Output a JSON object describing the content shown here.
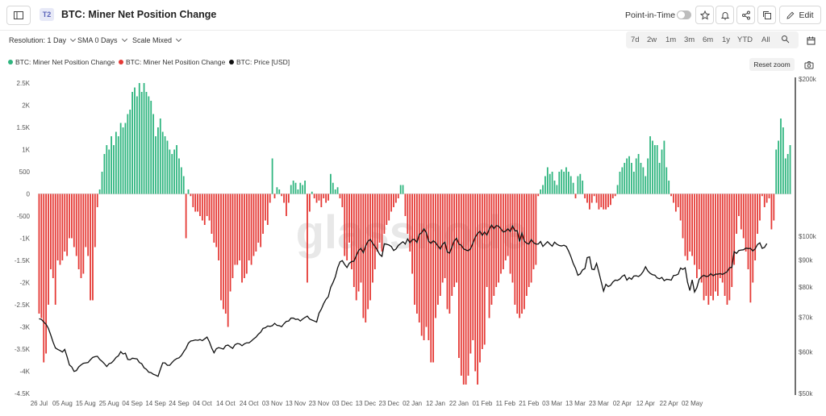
{
  "header": {
    "tier": "T2",
    "title": "BTC: Miner Net Position Change",
    "point_in_time": "Point-in-Time",
    "edit_label": "Edit"
  },
  "controls": {
    "resolution": "Resolution: 1 Day",
    "sma": "SMA 0 Days",
    "scale": "Scale Mixed",
    "ranges": [
      "7d",
      "2w",
      "1m",
      "3m",
      "6m",
      "1y",
      "YTD",
      "All"
    ]
  },
  "legend": {
    "items": [
      {
        "label": "BTC: Miner Net Position Change",
        "color": "#2fb57f"
      },
      {
        "label": "BTC: Miner Net Position Change",
        "color": "#e53935"
      },
      {
        "label": "BTC: Price [USD]",
        "color": "#111111"
      }
    ],
    "reset_zoom": "Reset zoom"
  },
  "watermark": "glassnode",
  "chart_data": {
    "type": "bar",
    "x_labels": [
      "26 Jul",
      "05 Aug",
      "15 Aug",
      "25 Aug",
      "04 Sep",
      "14 Sep",
      "24 Sep",
      "04 Oct",
      "14 Oct",
      "24 Oct",
      "03 Nov",
      "13 Nov",
      "23 Nov",
      "03 Dec",
      "13 Dec",
      "23 Dec",
      "02 Jan",
      "12 Jan",
      "22 Jan",
      "01 Feb",
      "11 Feb",
      "21 Feb",
      "03 Mar",
      "13 Mar",
      "23 Mar",
      "02 Apr",
      "12 Apr",
      "22 Apr",
      "02 May"
    ],
    "left_axis_ticks": [
      "2.5K",
      "2K",
      "1.5K",
      "1K",
      "500",
      "0",
      "-500",
      "-1K",
      "-1.5K",
      "-2K",
      "-2.5K",
      "-3K",
      "-3.5K",
      "-4K",
      "-4.5K"
    ],
    "right_axis_ticks": [
      "$200k",
      "$100k",
      "$90k",
      "$80k",
      "$70k",
      "$60k",
      "$50k"
    ],
    "y_left_range": [
      -4500,
      2500
    ],
    "y_right_range": [
      50000,
      200000
    ],
    "right_scale": "log",
    "colors": {
      "positive": "#2fb57f",
      "negative": "#e53935",
      "price": "#111111"
    },
    "series": [
      {
        "name": "BTC: Miner Net Position Change",
        "values": [
          -2700,
          -2800,
          -3800,
          -3600,
          -2500,
          -1700,
          -1900,
          -2500,
          -1500,
          -1600,
          -1500,
          -1300,
          -1400,
          -1000,
          -1000,
          -1200,
          -1400,
          -1700,
          -1900,
          -1800,
          -1200,
          -1400,
          -2400,
          -2400,
          -1200,
          -300,
          100,
          500,
          900,
          1100,
          1000,
          1300,
          1100,
          1400,
          1300,
          1600,
          1500,
          1600,
          1800,
          1900,
          2300,
          2400,
          2200,
          2500,
          2300,
          2500,
          2300,
          2200,
          2100,
          1800,
          1300,
          1500,
          1700,
          1400,
          1300,
          1200,
          1000,
          900,
          1000,
          1100,
          800,
          600,
          400,
          -1000,
          100,
          -50,
          -300,
          -400,
          -400,
          -500,
          -600,
          -700,
          -500,
          -600,
          -900,
          -1100,
          -1200,
          -1500,
          -2400,
          -2600,
          -2700,
          -3000,
          -2200,
          -1900,
          -1600,
          -1600,
          -1500,
          -2000,
          -1900,
          -1800,
          -1500,
          -1600,
          -1400,
          -1300,
          -1100,
          -1200,
          -900,
          -600,
          -700,
          -200,
          800,
          -100,
          150,
          100,
          -50,
          -200,
          -500,
          -200,
          200,
          300,
          250,
          100,
          250,
          200,
          300,
          -2000,
          -400,
          50,
          -100,
          -200,
          -150,
          -300,
          -100,
          -200,
          -150,
          450,
          250,
          100,
          150,
          -100,
          -300,
          -1400,
          -1500,
          -1100,
          -1700,
          -2100,
          -2400,
          -2200,
          -2000,
          -2800,
          -2900,
          -2600,
          -2400,
          -2000,
          -1700,
          -1300,
          -1100,
          -1300,
          -900,
          -700,
          -600,
          -400,
          -300,
          -200,
          -100,
          200,
          200,
          -500,
          -900,
          -1300,
          -1800,
          -2500,
          -2700,
          -2900,
          -3200,
          -3300,
          -3000,
          -3300,
          -3800,
          -3800,
          -2800,
          -2500,
          -2300,
          -2000,
          -1900,
          -2600,
          -2700,
          -2300,
          -2100,
          -2000,
          -3700,
          -4100,
          -4300,
          -4300,
          -4100,
          -3600,
          -3300,
          -4000,
          -4300,
          -3800,
          -3500,
          -3400,
          -2100,
          -2800,
          -2500,
          -2300,
          -2100,
          -2000,
          -1800,
          -1700,
          -1500,
          -1400,
          -1800,
          -2000,
          -2500,
          -2700,
          -2800,
          -2700,
          -2600,
          -2300,
          -2100,
          -2000,
          -1700,
          -1600,
          -50,
          100,
          200,
          400,
          600,
          450,
          500,
          300,
          200,
          500,
          550,
          500,
          600,
          500,
          400,
          250,
          -100,
          400,
          450,
          300,
          -100,
          -200,
          -350,
          -200,
          -50,
          -200,
          -350,
          -300,
          -350,
          -350,
          -300,
          -250,
          -100,
          -50,
          200,
          500,
          600,
          700,
          800,
          850,
          700,
          500,
          800,
          900,
          700,
          600,
          400,
          800,
          1300,
          1200,
          1100,
          1100,
          700,
          1000,
          1200,
          600,
          300,
          -50,
          -200,
          -400,
          -300,
          -600,
          -1000,
          -1400,
          -1500,
          -1300,
          -1400,
          -1600,
          -1900,
          -1700,
          -2000,
          -2400,
          -2300,
          -2500,
          -2300,
          -2400,
          -2200,
          -2300,
          -1900,
          -2000,
          -2300,
          -2500,
          -2400,
          -2100,
          -1600,
          -900,
          -500,
          -800,
          -1000,
          -1300,
          -1700,
          -2450,
          -2000,
          -1500,
          -900,
          -600,
          -50,
          -300,
          -200,
          -100,
          -800,
          -600,
          1000,
          1200,
          1700,
          1500,
          800,
          900,
          1100
        ],
        "price": [
          69500,
          69300,
          68500,
          67800,
          66600,
          64700,
          62700,
          61100,
          60700,
          60400,
          60000,
          60700,
          58800,
          56700,
          56200,
          55100,
          55300,
          56200,
          56700,
          57100,
          57200,
          57300,
          58000,
          58600,
          58800,
          58900,
          58100,
          57600,
          57000,
          56300,
          57000,
          57200,
          57800,
          58600,
          59000,
          60100,
          59500,
          59700,
          58100,
          58000,
          58400,
          58300,
          58200,
          57300,
          57000,
          56000,
          55600,
          54900,
          54800,
          54400,
          54200,
          53900,
          55600,
          57200,
          57200,
          56600,
          56600,
          57300,
          57900,
          58300,
          58500,
          59100,
          60100,
          61000,
          62400,
          63000,
          63100,
          63300,
          63200,
          63400,
          63100,
          63600,
          64100,
          62800,
          61100,
          59800,
          60900,
          61200,
          61000,
          60800,
          61700,
          61900,
          61400,
          61000,
          62000,
          62300,
          62200,
          61700,
          62200,
          62500,
          62500,
          63000,
          63600,
          64100,
          64900,
          65500,
          66600,
          66800,
          67300,
          67200,
          67400,
          68100,
          67500,
          67400,
          67100,
          68000,
          68700,
          68800,
          69700,
          69700,
          69300,
          69400,
          68800,
          69400,
          69900,
          70300,
          69400,
          69100,
          68800,
          68500,
          71200,
          72500,
          74300,
          75700,
          76600,
          79800,
          81500,
          83600,
          87000,
          89300,
          89800,
          88300,
          87100,
          88800,
          89400,
          89600,
          91800,
          93900,
          94800,
          93000,
          95800,
          97800,
          98600,
          97000,
          95600,
          94100,
          92300,
          91500,
          96700,
          96500,
          96200,
          95600,
          93900,
          94500,
          96000,
          96800,
          97600,
          96600,
          98800,
          97200,
          98500,
          98600,
          97300,
          100800,
          101500,
          103300,
          101600,
          97800,
          96900,
          98000,
          97200,
          95800,
          94500,
          96500,
          97400,
          93300,
          92800,
          95400,
          98000,
          99100,
          96600,
          96100,
          94600,
          94100,
          93800,
          94700,
          97000,
          99600,
          101200,
          102200,
          100400,
          101900,
          100500,
          103200,
          105000,
          103400,
          104800,
          104500,
          103300,
          101900,
          102200,
          103300,
          102100,
          104600,
          102400,
          102400,
          97700,
          101400,
          97900,
          97000,
          96600,
          98500,
          97200,
          96600,
          96600,
          97700,
          95600,
          96600,
          97600,
          96600,
          95700,
          97400,
          96500,
          96000,
          95800,
          96100,
          95600,
          93700,
          91400,
          88700,
          86800,
          84200,
          84700,
          86200,
          86700,
          91000,
          91300,
          86500,
          86300,
          88700,
          85300,
          81800,
          78500,
          80900,
          80100,
          80500,
          81700,
          82400,
          82300,
          82800,
          83800,
          84300,
          82400,
          83300,
          82700,
          83900,
          84000,
          83700,
          84400,
          85600,
          87400,
          85800,
          84900,
          84400,
          84200,
          83200,
          82900,
          83400,
          82200,
          82700,
          82600,
          82400,
          84100,
          84200,
          84600,
          86900,
          86400,
          87000,
          81700,
          78700,
          82500,
          78200,
          79700,
          82700,
          83600,
          84200,
          83700,
          83900,
          84800,
          84000,
          84600,
          84600,
          84800,
          84500,
          85000,
          85500,
          87000,
          87200,
          93400,
          92700,
          93900,
          94100,
          94200,
          94900,
          94700,
          94800,
          93700,
          94600,
          96400,
          97100,
          94800,
          95200,
          96800
        ]
      }
    ]
  }
}
